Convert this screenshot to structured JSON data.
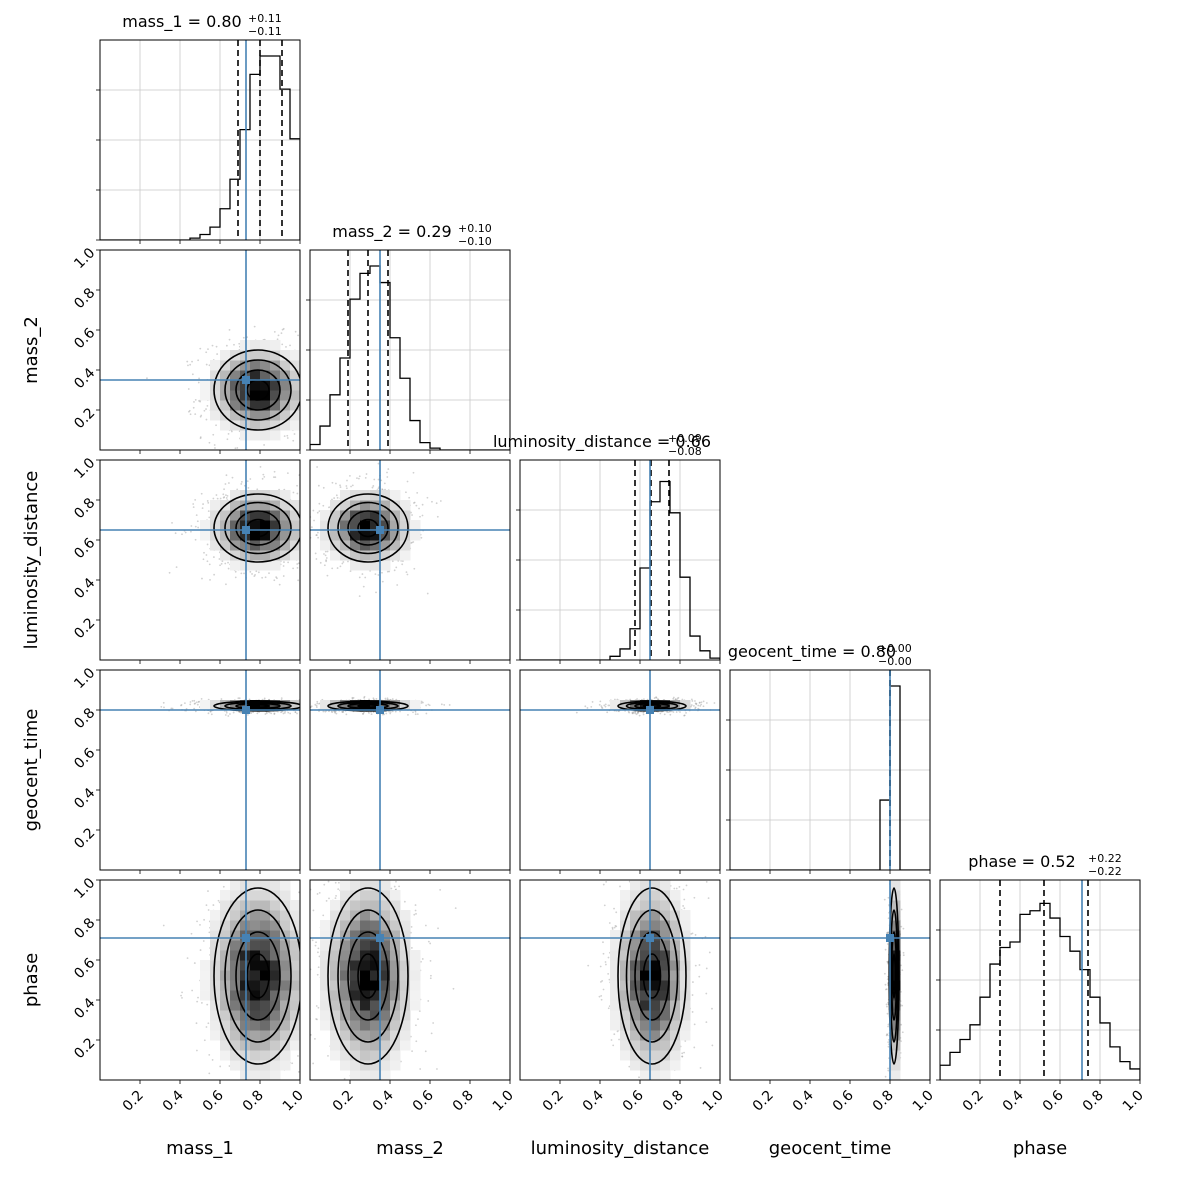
{
  "chart_data": {
    "type": "corner",
    "parameters": [
      "mass_1",
      "mass_2",
      "luminosity_distance",
      "geocent_time",
      "phase"
    ],
    "axis_range": [
      0,
      1
    ],
    "tick_values": [
      0.2,
      0.4,
      0.6,
      0.8,
      1.0
    ],
    "tick_labels": [
      "0.2",
      "0.4",
      "0.6",
      "0.8",
      "1.0"
    ],
    "grid": true,
    "truth_color": "#4682b4",
    "truths": [
      0.73,
      0.35,
      0.65,
      0.8,
      0.71
    ],
    "summaries": [
      {
        "param": "mass_1",
        "median": "0.80",
        "plus": "+0.11",
        "minus": "−0.11",
        "quantiles": [
          0.69,
          0.8,
          0.91
        ]
      },
      {
        "param": "mass_2",
        "median": "0.29",
        "plus": "+0.10",
        "minus": "−0.10",
        "quantiles": [
          0.19,
          0.29,
          0.39
        ]
      },
      {
        "param": "luminosity_distance",
        "median": "0.66",
        "plus": "+0.09",
        "minus": "−0.08",
        "quantiles": [
          0.575,
          0.655,
          0.745
        ]
      },
      {
        "param": "geocent_time",
        "median": "0.80",
        "plus": "+0.00",
        "minus": "−0.00",
        "quantiles": [
          0.8,
          0.8,
          0.8
        ]
      },
      {
        "param": "phase",
        "median": "0.52",
        "plus": "+0.22",
        "minus": "−0.22",
        "quantiles": [
          0.3,
          0.52,
          0.74
        ]
      }
    ],
    "histograms": [
      {
        "param": "mass_1",
        "bins": [
          0.0,
          0.05,
          0.1,
          0.15,
          0.2,
          0.25,
          0.3,
          0.35,
          0.4,
          0.45,
          0.5,
          0.55,
          0.6,
          0.65,
          0.7,
          0.75,
          0.8,
          0.85,
          0.9,
          0.95,
          1.0
        ],
        "counts": [
          0,
          0,
          0,
          0,
          0,
          0,
          0,
          0,
          0,
          0.01,
          0.03,
          0.07,
          0.17,
          0.33,
          0.6,
          0.9,
          1.0,
          1.0,
          0.82,
          0.55
        ]
      },
      {
        "param": "mass_2",
        "bins": [
          0.0,
          0.05,
          0.1,
          0.15,
          0.2,
          0.25,
          0.3,
          0.35,
          0.4,
          0.45,
          0.5,
          0.55,
          0.6,
          0.65,
          0.7,
          0.75,
          0.8,
          0.85,
          0.9,
          0.95,
          1.0
        ],
        "counts": [
          0.03,
          0.13,
          0.3,
          0.5,
          0.82,
          0.96,
          1.0,
          0.91,
          0.61,
          0.39,
          0.16,
          0.04,
          0.01,
          0,
          0,
          0,
          0,
          0,
          0,
          0
        ]
      },
      {
        "param": "luminosity_distance",
        "bins": [
          0.0,
          0.05,
          0.1,
          0.15,
          0.2,
          0.25,
          0.3,
          0.35,
          0.4,
          0.45,
          0.5,
          0.55,
          0.6,
          0.65,
          0.7,
          0.75,
          0.8,
          0.85,
          0.9,
          0.95,
          1.0
        ],
        "counts": [
          0,
          0,
          0,
          0,
          0,
          0,
          0,
          0,
          0,
          0.02,
          0.06,
          0.17,
          0.5,
          0.86,
          0.97,
          0.8,
          0.45,
          0.13,
          0.05,
          0.01
        ]
      },
      {
        "param": "geocent_time",
        "bins": [
          0.0,
          0.05,
          0.1,
          0.15,
          0.2,
          0.25,
          0.3,
          0.35,
          0.4,
          0.45,
          0.5,
          0.55,
          0.6,
          0.65,
          0.7,
          0.75,
          0.8,
          0.85,
          0.9,
          0.95,
          1.0
        ],
        "counts": [
          0,
          0,
          0,
          0,
          0,
          0,
          0,
          0,
          0,
          0,
          0,
          0,
          0,
          0,
          0,
          0.38,
          1.0,
          0,
          0,
          0
        ]
      },
      {
        "param": "phase",
        "bins": [
          0.0,
          0.05,
          0.1,
          0.15,
          0.2,
          0.25,
          0.3,
          0.35,
          0.4,
          0.45,
          0.5,
          0.55,
          0.6,
          0.65,
          0.7,
          0.75,
          0.8,
          0.85,
          0.9,
          0.95,
          1.0
        ],
        "counts": [
          0.08,
          0.15,
          0.22,
          0.3,
          0.45,
          0.63,
          0.72,
          0.75,
          0.9,
          0.92,
          0.96,
          0.88,
          0.78,
          0.7,
          0.6,
          0.45,
          0.31,
          0.18,
          0.1,
          0.06
        ]
      }
    ],
    "pair_posteriors": [
      {
        "x": "mass_1",
        "y": "mass_2",
        "center": [
          0.79,
          0.3
        ],
        "sigma": [
          0.11,
          0.1
        ]
      },
      {
        "x": "mass_1",
        "y": "luminosity_distance",
        "center": [
          0.79,
          0.66
        ],
        "sigma": [
          0.11,
          0.085
        ]
      },
      {
        "x": "mass_2",
        "y": "luminosity_distance",
        "center": [
          0.29,
          0.66
        ],
        "sigma": [
          0.1,
          0.085
        ]
      },
      {
        "x": "mass_1",
        "y": "geocent_time",
        "center": [
          0.79,
          0.82
        ],
        "sigma": [
          0.11,
          0.012
        ]
      },
      {
        "x": "mass_2",
        "y": "geocent_time",
        "center": [
          0.29,
          0.82
        ],
        "sigma": [
          0.1,
          0.012
        ]
      },
      {
        "x": "luminosity_distance",
        "y": "geocent_time",
        "center": [
          0.66,
          0.82
        ],
        "sigma": [
          0.085,
          0.012
        ]
      },
      {
        "x": "mass_1",
        "y": "phase",
        "center": [
          0.79,
          0.52
        ],
        "sigma": [
          0.11,
          0.22
        ]
      },
      {
        "x": "mass_2",
        "y": "phase",
        "center": [
          0.29,
          0.52
        ],
        "sigma": [
          0.1,
          0.22
        ]
      },
      {
        "x": "luminosity_distance",
        "y": "phase",
        "center": [
          0.66,
          0.52
        ],
        "sigma": [
          0.085,
          0.22
        ]
      },
      {
        "x": "geocent_time",
        "y": "phase",
        "center": [
          0.82,
          0.52
        ],
        "sigma": [
          0.012,
          0.22
        ]
      }
    ]
  }
}
